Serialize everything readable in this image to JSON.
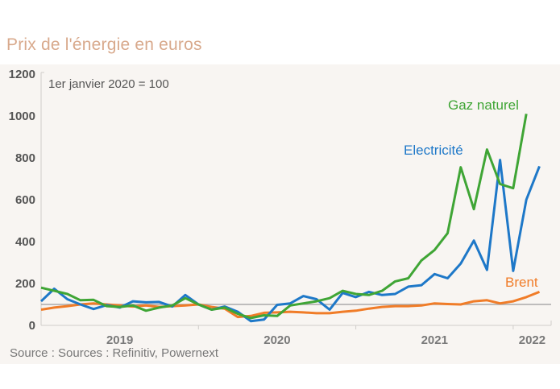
{
  "header": {
    "title": "Prix de l'énergie en euros"
  },
  "footer": {
    "source": "Source :  Sources : Refinitiv, Powernext"
  },
  "chart_data": {
    "type": "line",
    "title": "Prix de l'énergie en euros",
    "annotation": "1er janvier 2020 = 100",
    "xlabel": "",
    "ylabel": "",
    "ylim": [
      0,
      1200
    ],
    "yticks": [
      0,
      200,
      400,
      600,
      800,
      1000,
      1200
    ],
    "ytick_labels": [
      "0",
      "200",
      "400",
      "600",
      "800",
      "1000",
      "1200"
    ],
    "xticks_labels": [
      "2019",
      "2020",
      "2021",
      "2022"
    ],
    "x_start": "2019-01",
    "x_end": "2022-03",
    "x_unit": "month",
    "reference_line": 100,
    "grid": false,
    "series": [
      {
        "name": "Gaz naturel",
        "color": "#3fa535",
        "values": [
          180,
          165,
          150,
          120,
          122,
          92,
          88,
          95,
          70,
          85,
          95,
          130,
          100,
          75,
          85,
          55,
          35,
          48,
          45,
          95,
          105,
          115,
          130,
          165,
          150,
          145,
          165,
          210,
          225,
          310,
          360,
          440,
          755,
          555,
          840,
          675,
          655,
          1010,
          null
        ]
      },
      {
        "name": "Electricité",
        "color": "#1e78c8",
        "values": [
          115,
          175,
          125,
          100,
          78,
          97,
          85,
          115,
          110,
          112,
          90,
          145,
          100,
          75,
          90,
          65,
          20,
          28,
          98,
          105,
          140,
          125,
          75,
          155,
          135,
          160,
          145,
          150,
          185,
          192,
          245,
          225,
          295,
          405,
          265,
          790,
          260,
          600,
          760
        ]
      },
      {
        "name": "Brent",
        "color": "#f07c28",
        "values": [
          75,
          85,
          92,
          100,
          105,
          100,
          95,
          90,
          95,
          88,
          92,
          95,
          100,
          88,
          80,
          40,
          45,
          60,
          62,
          65,
          62,
          58,
          58,
          65,
          70,
          80,
          88,
          92,
          92,
          95,
          105,
          102,
          100,
          115,
          120,
          105,
          115,
          135,
          160
        ]
      }
    ]
  }
}
